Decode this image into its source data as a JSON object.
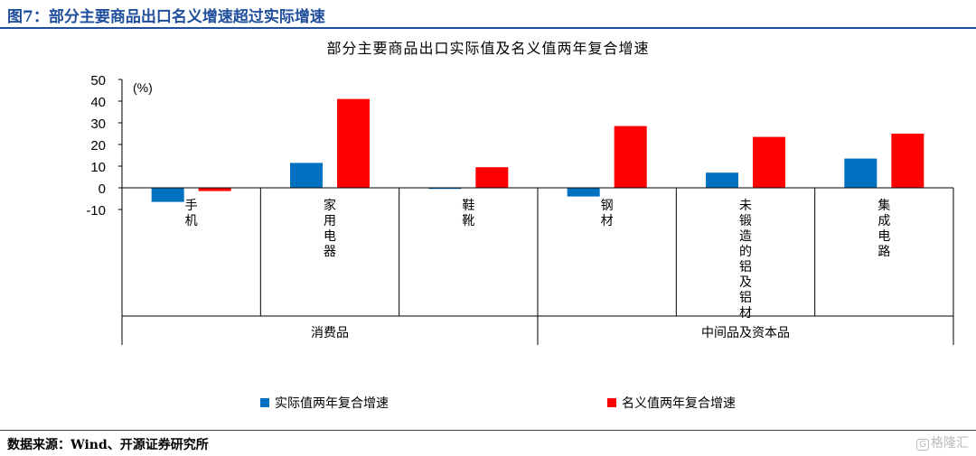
{
  "header": {
    "figure_title": "图7：部分主要商品出口名义增速超过实际增速"
  },
  "chart_data": {
    "type": "bar",
    "title": "部分主要商品出口实际值及名义值两年复合增速",
    "unit_label": "(%)",
    "ylim": [
      -10,
      50
    ],
    "yticks": [
      "50",
      "40",
      "30",
      "20",
      "10",
      "0",
      "-10"
    ],
    "categories": [
      "手机",
      "家用电器",
      "鞋靴",
      "钢材",
      "未锻造的铝及铝材",
      "集成电路"
    ],
    "groups": [
      {
        "label": "消费品",
        "span": [
          0,
          2
        ]
      },
      {
        "label": "中间品及资本品",
        "span": [
          3,
          5
        ]
      }
    ],
    "series": [
      {
        "name": "实际值两年复合增速",
        "color": "#0070c0",
        "values": [
          -6.5,
          11.5,
          -0.5,
          -4,
          7,
          13.5
        ]
      },
      {
        "name": "名义值两年复合增速",
        "color": "#ff0000",
        "values": [
          -1.5,
          41,
          9.5,
          28.5,
          23.5,
          25
        ]
      }
    ]
  },
  "footer": {
    "source": "数据来源：Wind、开源证券研究所",
    "watermark_icon": "ge-logo-icon",
    "watermark": "格隆汇"
  }
}
